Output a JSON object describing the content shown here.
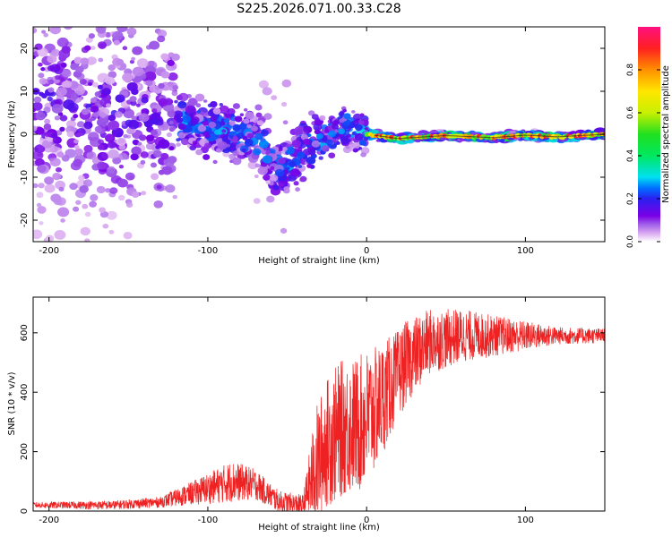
{
  "chart_data": [
    {
      "id": "spectrogram",
      "type": "heatmap",
      "title": "S225.2026.071.00.33.C28",
      "xlabel": "Height of straight line (km)",
      "ylabel": "Frequency (Hz)",
      "xlim": [
        -210,
        150
      ],
      "ylim": [
        -25,
        25
      ],
      "xticks": [
        -200,
        -100,
        0,
        100
      ],
      "yticks": [
        -20,
        -10,
        0,
        10,
        20
      ],
      "colorbar": {
        "label": "Normalized spectral amplitude",
        "range": [
          0,
          1
        ],
        "ticks": [
          "0.0",
          "0.2",
          "0.4",
          "0.6",
          "0.8"
        ],
        "tick_values": [
          0,
          0.2,
          0.4,
          0.6,
          0.8
        ],
        "colors": [
          "#ffffff",
          "#d9a8f0",
          "#a060e8",
          "#7a00e6",
          "#2a20f0",
          "#0070ff",
          "#00e0f0",
          "#00e860",
          "#20e020",
          "#c8f000",
          "#ffe600",
          "#ff9000",
          "#ff2020",
          "#ff1080"
        ],
        "color_stops": [
          0,
          0.04,
          0.08,
          0.12,
          0.2,
          0.25,
          0.3,
          0.4,
          0.5,
          0.6,
          0.7,
          0.8,
          0.9,
          1.0
        ]
      },
      "signal_track": [
        {
          "x": -210,
          "y": 8
        },
        {
          "x": -170,
          "y": 6
        },
        {
          "x": -140,
          "y": 5
        },
        {
          "x": -120,
          "y": 3
        },
        {
          "x": -100,
          "y": 2
        },
        {
          "x": -80,
          "y": 0
        },
        {
          "x": -65,
          "y": -3
        },
        {
          "x": -57,
          "y": -8
        },
        {
          "x": -50,
          "y": -7
        },
        {
          "x": -42,
          "y": -4
        },
        {
          "x": -35,
          "y": -2
        },
        {
          "x": -25,
          "y": -1
        },
        {
          "x": -15,
          "y": 2
        },
        {
          "x": -8,
          "y": 1
        },
        {
          "x": 0,
          "y": 0
        },
        {
          "x": 20,
          "y": -1
        },
        {
          "x": 50,
          "y": -0.3
        },
        {
          "x": 80,
          "y": -0.8
        },
        {
          "x": 100,
          "y": -0.2
        },
        {
          "x": 120,
          "y": -0.6
        },
        {
          "x": 150,
          "y": 0
        }
      ]
    },
    {
      "id": "snr",
      "type": "line",
      "xlabel": "Height of straight line (km)",
      "ylabel": "SNR (10 * v/v)",
      "xlim": [
        -210,
        150
      ],
      "ylim": [
        0,
        720
      ],
      "xticks": [
        -200,
        -100,
        0,
        100
      ],
      "yticks": [
        0,
        200,
        400,
        600
      ],
      "series": [
        {
          "name": "SNR",
          "color": "#ee2222",
          "trend": [
            {
              "x": -210,
              "y": 20
            },
            {
              "x": -160,
              "y": 20
            },
            {
              "x": -130,
              "y": 30
            },
            {
              "x": -110,
              "y": 60
            },
            {
              "x": -85,
              "y": 100
            },
            {
              "x": -70,
              "y": 90
            },
            {
              "x": -55,
              "y": 30
            },
            {
              "x": -40,
              "y": 20
            },
            {
              "x": -32,
              "y": 150
            },
            {
              "x": -25,
              "y": 230
            },
            {
              "x": -15,
              "y": 280
            },
            {
              "x": -5,
              "y": 290
            },
            {
              "x": 5,
              "y": 340
            },
            {
              "x": 15,
              "y": 420
            },
            {
              "x": 25,
              "y": 500
            },
            {
              "x": 40,
              "y": 570
            },
            {
              "x": 60,
              "y": 590
            },
            {
              "x": 90,
              "y": 590
            },
            {
              "x": 120,
              "y": 590
            },
            {
              "x": 150,
              "y": 590
            }
          ],
          "noise": [
            {
              "x": -210,
              "y": 10
            },
            {
              "x": -130,
              "y": 18
            },
            {
              "x": -110,
              "y": 40
            },
            {
              "x": -85,
              "y": 70
            },
            {
              "x": -60,
              "y": 40
            },
            {
              "x": -40,
              "y": 35
            },
            {
              "x": -32,
              "y": 200
            },
            {
              "x": -20,
              "y": 230
            },
            {
              "x": 0,
              "y": 230
            },
            {
              "x": 20,
              "y": 150
            },
            {
              "x": 40,
              "y": 110
            },
            {
              "x": 80,
              "y": 70
            },
            {
              "x": 120,
              "y": 30
            },
            {
              "x": 150,
              "y": 25
            }
          ]
        }
      ]
    }
  ]
}
